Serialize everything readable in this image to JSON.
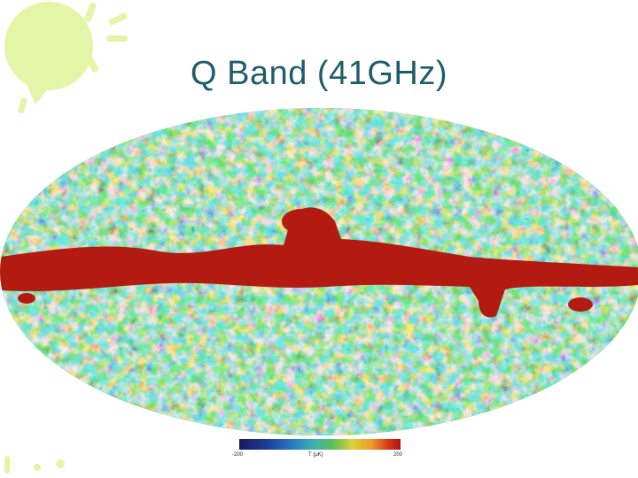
{
  "slide": {
    "title": "Q Band (41GHz)"
  },
  "scale": {
    "min_label": "-200",
    "unit_label": "T (μK)",
    "max_label": "200",
    "colors": [
      "#1a1a5a",
      "#1d3f9e",
      "#2a7fc4",
      "#3fb0b0",
      "#5bbf5a",
      "#d8d23a",
      "#f09a2a",
      "#d63a1a",
      "#b01010"
    ]
  },
  "theme": {
    "title_color": "#1f5d6b",
    "decor_color": "#e4f5a8",
    "galactic_band_color": "#b31b12"
  }
}
